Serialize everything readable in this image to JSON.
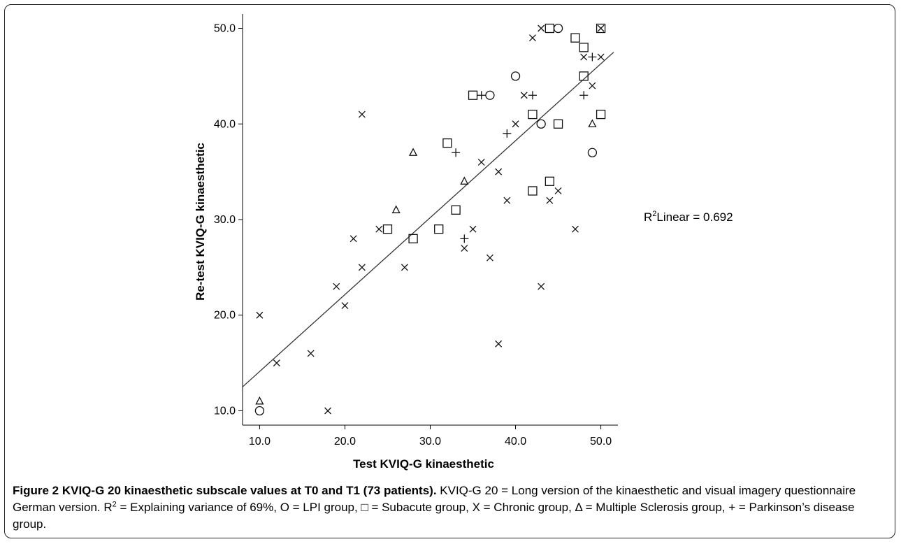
{
  "chart_data": {
    "type": "scatter",
    "xlabel": "Test KVIQ-G kinaesthetic",
    "ylabel": "Re-test KVIQ-G kinaesthetic",
    "xlim": [
      8,
      52
    ],
    "ylim": [
      8.5,
      51.5
    ],
    "xticks": [
      "10.0",
      "20.0",
      "30.0",
      "40.0",
      "50.0"
    ],
    "yticks": [
      "10.0",
      "20.0",
      "30.0",
      "40.0",
      "50.0"
    ],
    "grid": false,
    "annotation": "Linear = 0.692",
    "annotation_prefix": "R",
    "annotation_sup": "2",
    "fit_line": {
      "x": [
        8,
        51.5
      ],
      "y": [
        12.5,
        47.5
      ]
    },
    "series": [
      {
        "marker": "x",
        "points": [
          [
            10,
            20
          ],
          [
            12,
            15
          ],
          [
            16,
            16
          ],
          [
            18,
            10
          ],
          [
            19,
            23
          ],
          [
            20,
            21
          ],
          [
            21,
            28
          ],
          [
            22,
            25
          ],
          [
            22,
            41
          ],
          [
            24,
            29
          ],
          [
            27,
            25
          ],
          [
            34,
            27
          ],
          [
            35,
            29
          ],
          [
            36,
            36
          ],
          [
            37,
            26
          ],
          [
            38,
            35
          ],
          [
            38,
            17
          ],
          [
            39,
            32
          ],
          [
            40,
            40
          ],
          [
            41,
            43
          ],
          [
            42,
            49
          ],
          [
            43,
            50
          ],
          [
            43,
            23
          ],
          [
            44,
            32
          ],
          [
            45,
            33
          ],
          [
            47,
            29
          ],
          [
            48,
            47
          ],
          [
            49,
            44
          ],
          [
            50,
            47
          ],
          [
            50,
            50
          ]
        ]
      },
      {
        "marker": "square",
        "points": [
          [
            25,
            29
          ],
          [
            28,
            28
          ],
          [
            31,
            29
          ],
          [
            32,
            38
          ],
          [
            33,
            31
          ],
          [
            35,
            43
          ],
          [
            42,
            33
          ],
          [
            42,
            41
          ],
          [
            44,
            34
          ],
          [
            44,
            50
          ],
          [
            45,
            40
          ],
          [
            47,
            49
          ],
          [
            48,
            48
          ],
          [
            48,
            45
          ],
          [
            50,
            41
          ],
          [
            50,
            50
          ]
        ]
      },
      {
        "marker": "circle",
        "points": [
          [
            10,
            10
          ],
          [
            37,
            43
          ],
          [
            40,
            45
          ],
          [
            43,
            40
          ],
          [
            45,
            50
          ],
          [
            49,
            37
          ]
        ]
      },
      {
        "marker": "triangle",
        "points": [
          [
            10,
            11
          ],
          [
            26,
            31
          ],
          [
            28,
            37
          ],
          [
            34,
            34
          ],
          [
            49,
            40
          ]
        ]
      },
      {
        "marker": "plus",
        "points": [
          [
            33,
            37
          ],
          [
            34,
            28
          ],
          [
            36,
            43
          ],
          [
            39,
            39
          ],
          [
            42,
            43
          ],
          [
            48,
            43
          ],
          [
            49,
            47
          ]
        ]
      }
    ]
  },
  "caption": {
    "bold": "Figure 2 KVIQ-G 20 kinaesthetic subscale values at T0 and T1 (73 patients).",
    "text1": " KVIQ-G 20 = Long version of the kinaesthetic and visual imagery questionnaire German version. R",
    "sup": "2",
    "text2": " = Explaining variance of 69%, O = LPI group, □ = Subacute group, X = Chronic group, Δ = Multiple Sclerosis group, + = Parkinson’s disease group."
  }
}
